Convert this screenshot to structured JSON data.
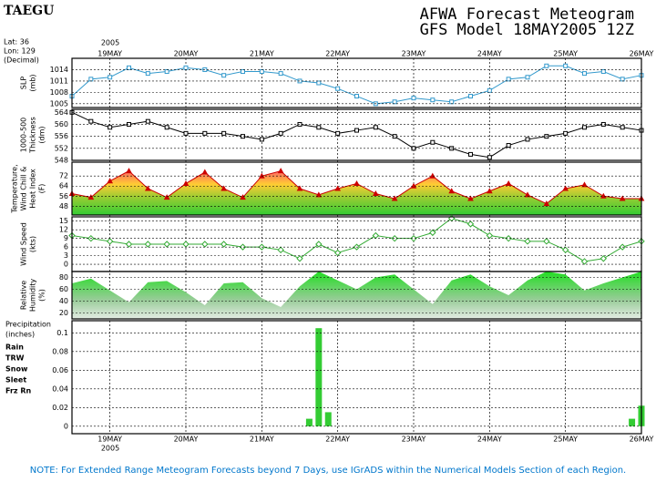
{
  "chart_data": {
    "type": "meteogram",
    "station": "TAEGU",
    "title": "AFWA Forecast Meteogram",
    "subtitle": "GFS Model 18MAY2005 12Z",
    "location": [
      "Lat: 36",
      "Lon: 129",
      "(Decimal)"
    ],
    "year": "2005",
    "note": "NOTE: For Extended Range Meteogram Forecasts beyond 7 Days, use IGrADS within the Numerical Models Section of each Region.",
    "xlim": [
      0,
      180
    ],
    "xticks": [
      {
        "value": 12,
        "label": "19MAY"
      },
      {
        "value": 36,
        "label": "20MAY"
      },
      {
        "value": 60,
        "label": "21MAY"
      },
      {
        "value": 84,
        "label": "22MAY"
      },
      {
        "value": 108,
        "label": "23MAY"
      },
      {
        "value": 132,
        "label": "24MAY"
      },
      {
        "value": 156,
        "label": "25MAY"
      },
      {
        "value": 180,
        "label": "26MAY"
      }
    ],
    "x": [
      0,
      6,
      12,
      18,
      24,
      30,
      36,
      42,
      48,
      54,
      60,
      66,
      72,
      78,
      84,
      90,
      96,
      102,
      108,
      114,
      120,
      126,
      132,
      138,
      144,
      150,
      156,
      162,
      168,
      174,
      180
    ],
    "panels": [
      {
        "type": "line",
        "marker": "square",
        "ylabel": [
          "SLP",
          "(mb)"
        ],
        "color": "#3399cc",
        "ylim": [
          1004,
          1017
        ],
        "yticks": [
          1005,
          1008,
          1011,
          1014
        ],
        "values": [
          1007,
          1011.5,
          1012,
          1014.5,
          1013,
          1013.5,
          1014.5,
          1014,
          1012.5,
          1013.5,
          1013.5,
          1013,
          1011,
          1010.5,
          1009,
          1007,
          1005,
          1005.5,
          1006.5,
          1006,
          1005.5,
          1007,
          1008.5,
          1011.5,
          1012,
          1015,
          1015,
          1013,
          1013.5,
          1011.5,
          1012.5
        ]
      },
      {
        "type": "line",
        "marker": "square",
        "ylabel": [
          "1000-500",
          "Thickness",
          "(dm)"
        ],
        "color": "#000000",
        "ylim": [
          548,
          565
        ],
        "yticks": [
          548,
          552,
          556,
          560,
          564
        ],
        "values": [
          564,
          561,
          559,
          560,
          561,
          559,
          557,
          557,
          557,
          556,
          555,
          557,
          560,
          559,
          557,
          558,
          559,
          556,
          552,
          554,
          552,
          550,
          549,
          553,
          555,
          556,
          557,
          559,
          560,
          559,
          558
        ]
      },
      {
        "type": "area",
        "marker": "triangle",
        "ylabel": [
          "Temperature,",
          "Wind Chill &",
          "Heat Index",
          "(F)"
        ],
        "color": "#cc0000",
        "ylim": [
          41,
          83
        ],
        "yticks": [
          48,
          56,
          64,
          72
        ],
        "values": [
          58,
          55,
          68,
          76,
          62,
          55,
          66,
          75,
          62,
          55,
          72,
          76,
          62,
          57,
          62,
          66,
          58,
          54,
          64,
          72,
          60,
          54,
          60,
          66,
          57,
          50,
          62,
          65,
          56,
          54,
          54
        ]
      },
      {
        "type": "line",
        "marker": "diamond",
        "ylabel": [
          "Wind Speed",
          "(kts)"
        ],
        "color": "#33aa33",
        "ylim": [
          -2.5,
          16.5
        ],
        "yticks": [
          0,
          3,
          6,
          9,
          12,
          15
        ],
        "values": [
          10,
          9,
          8,
          7,
          7,
          7,
          7,
          7,
          7,
          6,
          6,
          5,
          2,
          7,
          4,
          6,
          10,
          9,
          9,
          11,
          16,
          14,
          10,
          9,
          8,
          8,
          5,
          1,
          2,
          6,
          8
        ]
      },
      {
        "type": "area",
        "marker": "none",
        "ylabel": [
          "Relative",
          "Humidity",
          "(%)"
        ],
        "color": "#33cc33",
        "ylim": [
          10,
          90
        ],
        "yticks": [
          20,
          40,
          60,
          80
        ],
        "values": [
          70,
          78,
          58,
          38,
          72,
          74,
          55,
          33,
          70,
          72,
          45,
          30,
          65,
          90,
          75,
          60,
          80,
          85,
          60,
          35,
          75,
          85,
          65,
          50,
          75,
          90,
          85,
          58,
          70,
          80,
          90
        ]
      },
      {
        "type": "bar",
        "ylabel": [
          "Precipitation",
          "(inches)"
        ],
        "color": "#33cc33",
        "legend": [
          {
            "name": "Rain",
            "color": "#33cc33"
          },
          {
            "name": "TRW",
            "color": "#cccc33"
          },
          {
            "name": "Snow",
            "color": "#bbbbbb"
          },
          {
            "name": "Sleet",
            "color": "#ff9999"
          },
          {
            "name": "Frz Rn",
            "color": "#cc0000"
          }
        ],
        "ylim": [
          -0.008,
          0.113
        ],
        "yticks": [
          0,
          0.02,
          0.04,
          0.06,
          0.08,
          0.1
        ],
        "x": [
          75,
          78,
          81,
          177,
          180
        ],
        "values": [
          0.008,
          0.105,
          0.015,
          0.008,
          0.022
        ]
      }
    ]
  }
}
